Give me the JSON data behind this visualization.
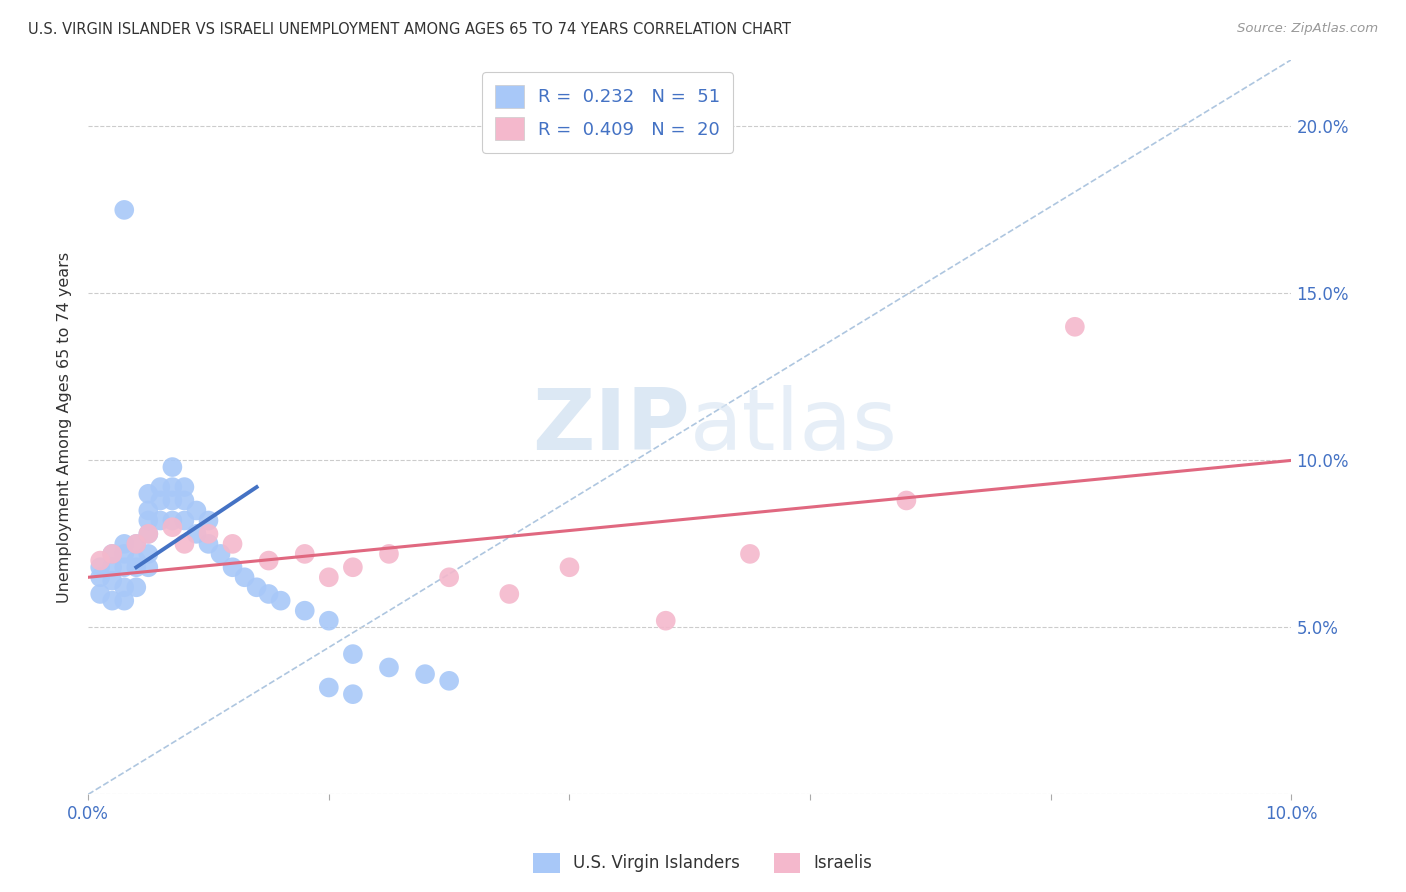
{
  "title": "U.S. VIRGIN ISLANDER VS ISRAELI UNEMPLOYMENT AMONG AGES 65 TO 74 YEARS CORRELATION CHART",
  "source": "Source: ZipAtlas.com",
  "ylabel": "Unemployment Among Ages 65 to 74 years",
  "xlim": [
    0.0,
    0.1
  ],
  "ylim": [
    0.0,
    0.22
  ],
  "color_blue": "#a8c8f8",
  "color_pink": "#f4b8cc",
  "line_blue": "#4472c4",
  "line_pink": "#e06880",
  "line_dashed_color": "#9ab8d8",
  "watermark_color": "#dce8f4",
  "vi_scatter_x": [
    0.001,
    0.001,
    0.001,
    0.002,
    0.002,
    0.002,
    0.002,
    0.003,
    0.003,
    0.003,
    0.003,
    0.003,
    0.004,
    0.004,
    0.004,
    0.004,
    0.005,
    0.005,
    0.005,
    0.005,
    0.005,
    0.005,
    0.006,
    0.006,
    0.006,
    0.007,
    0.007,
    0.007,
    0.007,
    0.008,
    0.008,
    0.008,
    0.009,
    0.009,
    0.01,
    0.01,
    0.011,
    0.012,
    0.013,
    0.014,
    0.015,
    0.016,
    0.018,
    0.02,
    0.022,
    0.025,
    0.028,
    0.03,
    0.003,
    0.02,
    0.022
  ],
  "vi_scatter_y": [
    0.068,
    0.065,
    0.06,
    0.072,
    0.068,
    0.064,
    0.058,
    0.075,
    0.072,
    0.068,
    0.062,
    0.058,
    0.075,
    0.07,
    0.068,
    0.062,
    0.09,
    0.085,
    0.082,
    0.078,
    0.072,
    0.068,
    0.092,
    0.088,
    0.082,
    0.098,
    0.092,
    0.088,
    0.082,
    0.092,
    0.088,
    0.082,
    0.085,
    0.078,
    0.082,
    0.075,
    0.072,
    0.068,
    0.065,
    0.062,
    0.06,
    0.058,
    0.055,
    0.052,
    0.042,
    0.038,
    0.036,
    0.034,
    0.175,
    0.032,
    0.03
  ],
  "is_scatter_x": [
    0.001,
    0.002,
    0.004,
    0.005,
    0.007,
    0.008,
    0.01,
    0.012,
    0.015,
    0.018,
    0.02,
    0.022,
    0.025,
    0.03,
    0.035,
    0.04,
    0.048,
    0.055,
    0.068,
    0.082
  ],
  "is_scatter_y": [
    0.07,
    0.072,
    0.075,
    0.078,
    0.08,
    0.075,
    0.078,
    0.075,
    0.07,
    0.072,
    0.065,
    0.068,
    0.072,
    0.065,
    0.06,
    0.068,
    0.052,
    0.072,
    0.088,
    0.14
  ],
  "vi_line_x": [
    0.004,
    0.014
  ],
  "vi_line_y": [
    0.068,
    0.092
  ],
  "is_line_x": [
    0.0,
    0.1
  ],
  "is_line_y": [
    0.065,
    0.1
  ],
  "diag_line_x": [
    0.0,
    0.1
  ],
  "diag_line_y": [
    0.0,
    0.22
  ]
}
